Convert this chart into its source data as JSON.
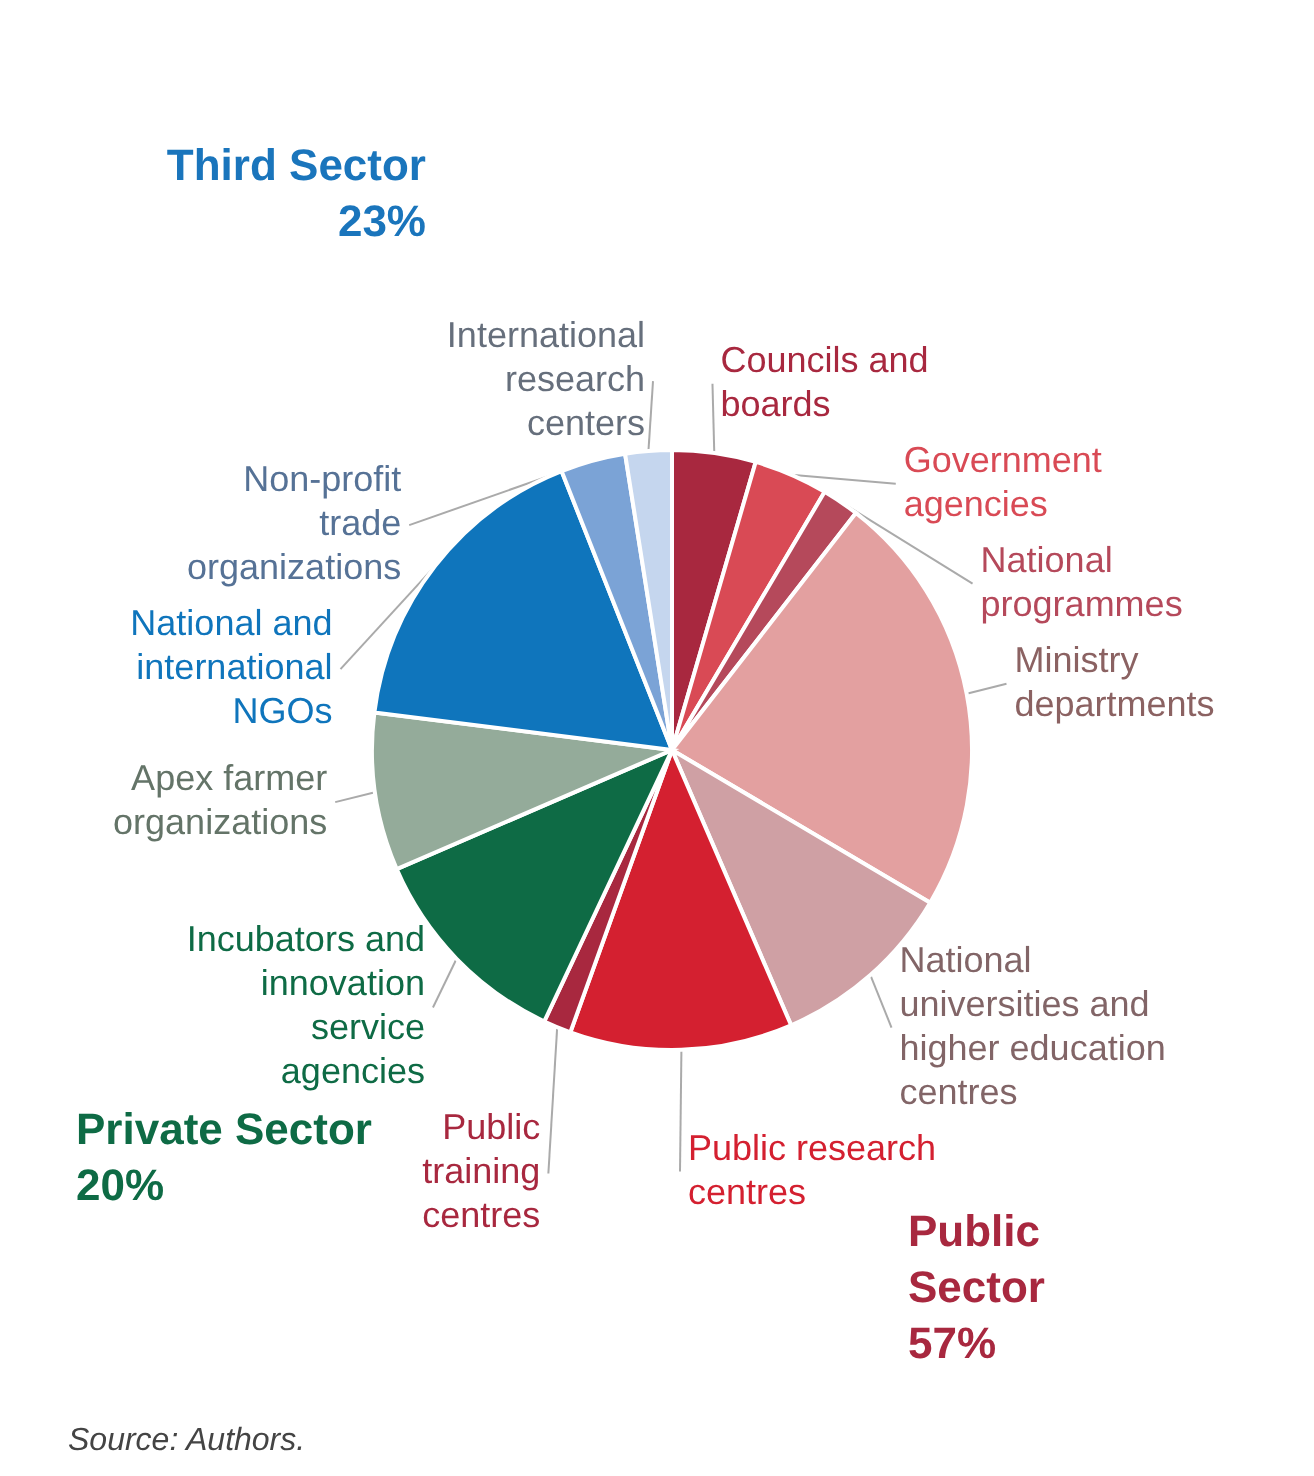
{
  "chart_data": {
    "type": "pie",
    "categories": [
      "Councils and boards",
      "Government agencies",
      "National programmes",
      "Ministry departments",
      "National universities and higher education centres",
      "Public research centres",
      "Public training centres",
      "Incubators and innovation service agencies",
      "Apex farmer organizations",
      "National and international NGOs",
      "Non-profit trade organizations",
      "International research centers"
    ],
    "values": [
      4.5,
      4,
      2,
      23,
      10,
      12,
      1.5,
      11.5,
      8.5,
      17,
      3.5,
      2.5
    ],
    "colors": [
      "#a8283f",
      "#d94a55",
      "#b5495b",
      "#e3a0a0",
      "#cfa0a4",
      "#d42030",
      "#a8283f",
      "#0e6b45",
      "#94ab9a",
      "#0f75bc",
      "#7ba3d6",
      "#c5d6ee"
    ],
    "annotations": [
      "Third Sector 23%",
      "Private Sector 20%",
      "Public Sector 57%",
      "Source: Authors."
    ]
  }
}
